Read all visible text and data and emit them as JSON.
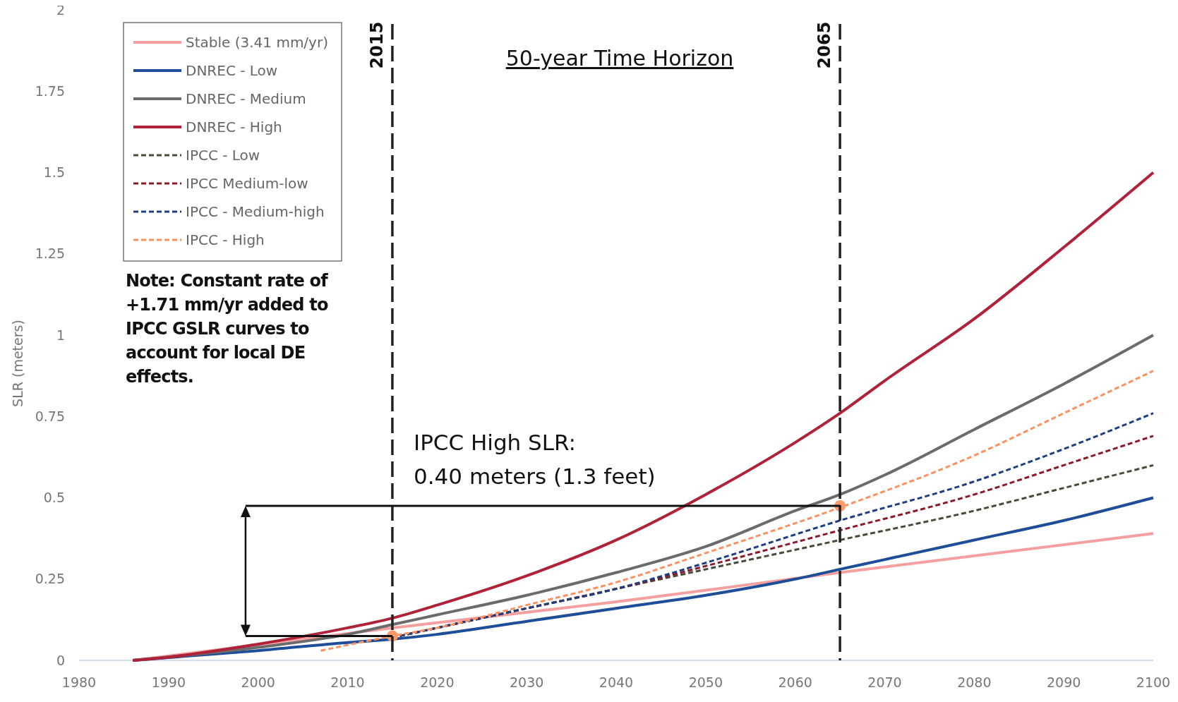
{
  "chart_data": {
    "type": "line",
    "ylabel": "SLR (meters)",
    "xlim": [
      1980,
      2100
    ],
    "xticks": [
      1980,
      1990,
      2000,
      2010,
      2020,
      2030,
      2040,
      2050,
      2060,
      2070,
      2080,
      2090,
      2100
    ],
    "ylim": [
      0,
      2
    ],
    "yticks": [
      0,
      0.25,
      0.5,
      0.75,
      1,
      1.25,
      1.5,
      1.75,
      2
    ],
    "grid": false,
    "legend": "top left",
    "series": [
      {
        "name": "Stable (3.41 mm/yr)",
        "color": "#f4a0a0",
        "line_style": "solid",
        "x": [
          1986,
          2015,
          2040,
          2065,
          2100
        ],
        "values": [
          0,
          0.1,
          0.18,
          0.27,
          0.39
        ]
      },
      {
        "name": "DNREC - Low",
        "color": "#1f4e99",
        "line_style": "solid",
        "x": [
          1986,
          2000,
          2010,
          2015,
          2020,
          2030,
          2040,
          2050,
          2060,
          2065,
          2070,
          2080,
          2090,
          2100
        ],
        "values": [
          0,
          0.03,
          0.055,
          0.065,
          0.08,
          0.12,
          0.16,
          0.2,
          0.25,
          0.28,
          0.31,
          0.37,
          0.43,
          0.5
        ]
      },
      {
        "name": "DNREC - Medium",
        "color": "#6b6b6b",
        "line_style": "solid",
        "x": [
          1986,
          2000,
          2010,
          2015,
          2020,
          2030,
          2040,
          2050,
          2060,
          2065,
          2070,
          2080,
          2090,
          2100
        ],
        "values": [
          0,
          0.04,
          0.08,
          0.11,
          0.14,
          0.2,
          0.27,
          0.35,
          0.46,
          0.51,
          0.57,
          0.71,
          0.85,
          1.0
        ]
      },
      {
        "name": "DNREC - High",
        "color": "#b0223a",
        "line_style": "solid",
        "x": [
          1986,
          1990,
          2000,
          2010,
          2015,
          2020,
          2030,
          2040,
          2050,
          2060,
          2065,
          2070,
          2080,
          2090,
          2100
        ],
        "values": [
          0,
          0.01,
          0.05,
          0.1,
          0.13,
          0.17,
          0.26,
          0.37,
          0.51,
          0.67,
          0.76,
          0.86,
          1.05,
          1.27,
          1.5
        ]
      },
      {
        "name": "IPCC - Low",
        "color": "#4a4a3a",
        "line_style": "dashed",
        "x": [
          2015,
          2030,
          2040,
          2050,
          2065,
          2080,
          2090,
          2100
        ],
        "values": [
          0.07,
          0.16,
          0.22,
          0.28,
          0.37,
          0.46,
          0.53,
          0.6
        ]
      },
      {
        "name": "IPCC Medium-low",
        "color": "#8b1a2b",
        "line_style": "dashed",
        "x": [
          2015,
          2030,
          2040,
          2050,
          2065,
          2080,
          2090,
          2100
        ],
        "values": [
          0.07,
          0.16,
          0.22,
          0.29,
          0.4,
          0.51,
          0.6,
          0.69
        ]
      },
      {
        "name": "IPCC - Medium-high",
        "color": "#1f3f80",
        "line_style": "dashed",
        "x": [
          2015,
          2030,
          2040,
          2050,
          2065,
          2080,
          2090,
          2100
        ],
        "values": [
          0.07,
          0.16,
          0.22,
          0.3,
          0.43,
          0.55,
          0.65,
          0.76
        ]
      },
      {
        "name": "IPCC - High",
        "color": "#ff9060",
        "line_style": "dashed",
        "x": [
          2007,
          2015,
          2020,
          2030,
          2040,
          2050,
          2065,
          2080,
          2090,
          2100
        ],
        "values": [
          0.03,
          0.075,
          0.1,
          0.17,
          0.24,
          0.33,
          0.47,
          0.63,
          0.76,
          0.89
        ]
      },
      {
        "type": "scatter",
        "marker": "circle",
        "color": "#ff9a6a",
        "x": [
          2015,
          2065
        ],
        "values": [
          0.075,
          0.475
        ]
      }
    ],
    "ref_lines": [
      {
        "axis": "x",
        "value": 2015,
        "label": "2015",
        "color": "#222222",
        "line_style": "dashed"
      },
      {
        "axis": "x",
        "value": 2065,
        "label": "2065",
        "color": "#222222",
        "line_style": "dashed"
      }
    ],
    "annotations": [
      "50-year Time Horizon",
      "Note:  Constant rate of\n+1.71 mm/yr added to\nIPCC GSLR curves to\naccount for local DE\neffects.",
      "IPCC High SLR:\n0.40 meters (1.3 feet)"
    ]
  }
}
